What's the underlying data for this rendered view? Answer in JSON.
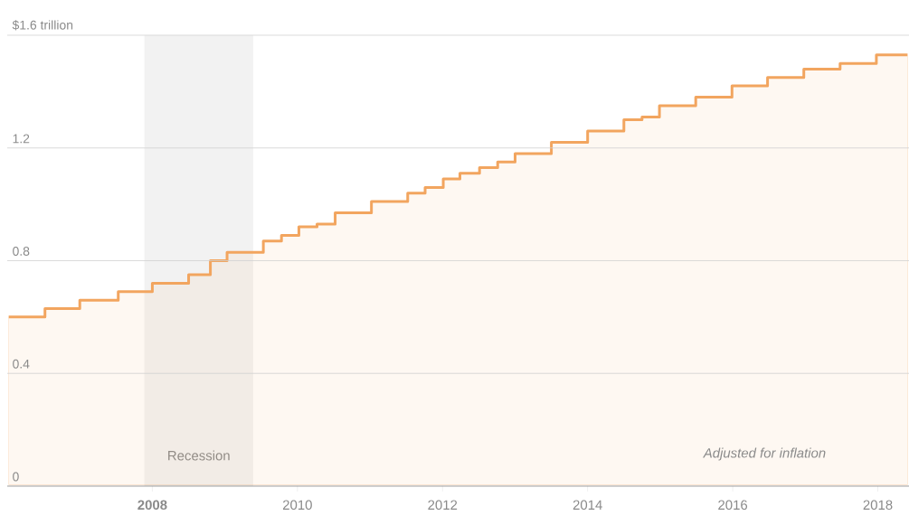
{
  "chart_data": {
    "type": "area",
    "x": [
      2006.0,
      2006.52,
      2007.0,
      2007.53,
      2008.0,
      2008.5,
      2008.8,
      2009.03,
      2009.53,
      2009.78,
      2010.02,
      2010.27,
      2010.52,
      2011.02,
      2011.52,
      2011.76,
      2012.01,
      2012.24,
      2012.51,
      2012.76,
      2013.0,
      2013.5,
      2014.0,
      2014.5,
      2014.75,
      2014.99,
      2015.49,
      2015.99,
      2016.48,
      2016.98,
      2017.48,
      2017.98,
      2018.43
    ],
    "series": [
      {
        "color": "#f2a55f",
        "values": [
          0.6,
          0.63,
          0.66,
          0.69,
          0.72,
          0.75,
          0.8,
          0.83,
          0.87,
          0.89,
          0.92,
          0.93,
          0.97,
          1.01,
          1.04,
          1.06,
          1.09,
          1.11,
          1.13,
          1.15,
          1.18,
          1.22,
          1.26,
          1.3,
          1.31,
          1.35,
          1.38,
          1.42,
          1.45,
          1.48,
          1.5,
          1.53,
          1.53
        ]
      }
    ],
    "xlim": [
      2006.0,
      2018.43
    ],
    "ylim": [
      0,
      1.6
    ],
    "xticks": [
      {
        "value": 2008,
        "label": "**2008**"
      },
      2010,
      2012,
      2014,
      2016,
      2018
    ],
    "yticks": [
      0,
      0.4,
      0.8,
      1.2,
      {
        "value": 1.6,
        "label": "$1.6 trillion"
      }
    ],
    "grid": "y",
    "bands": [
      {
        "axis": "x",
        "from": 2007.89,
        "to": 2009.39,
        "label": "Recession",
        "color": "#f2f2f2"
      }
    ],
    "annotations": [
      "Adjusted for inflation"
    ]
  }
}
